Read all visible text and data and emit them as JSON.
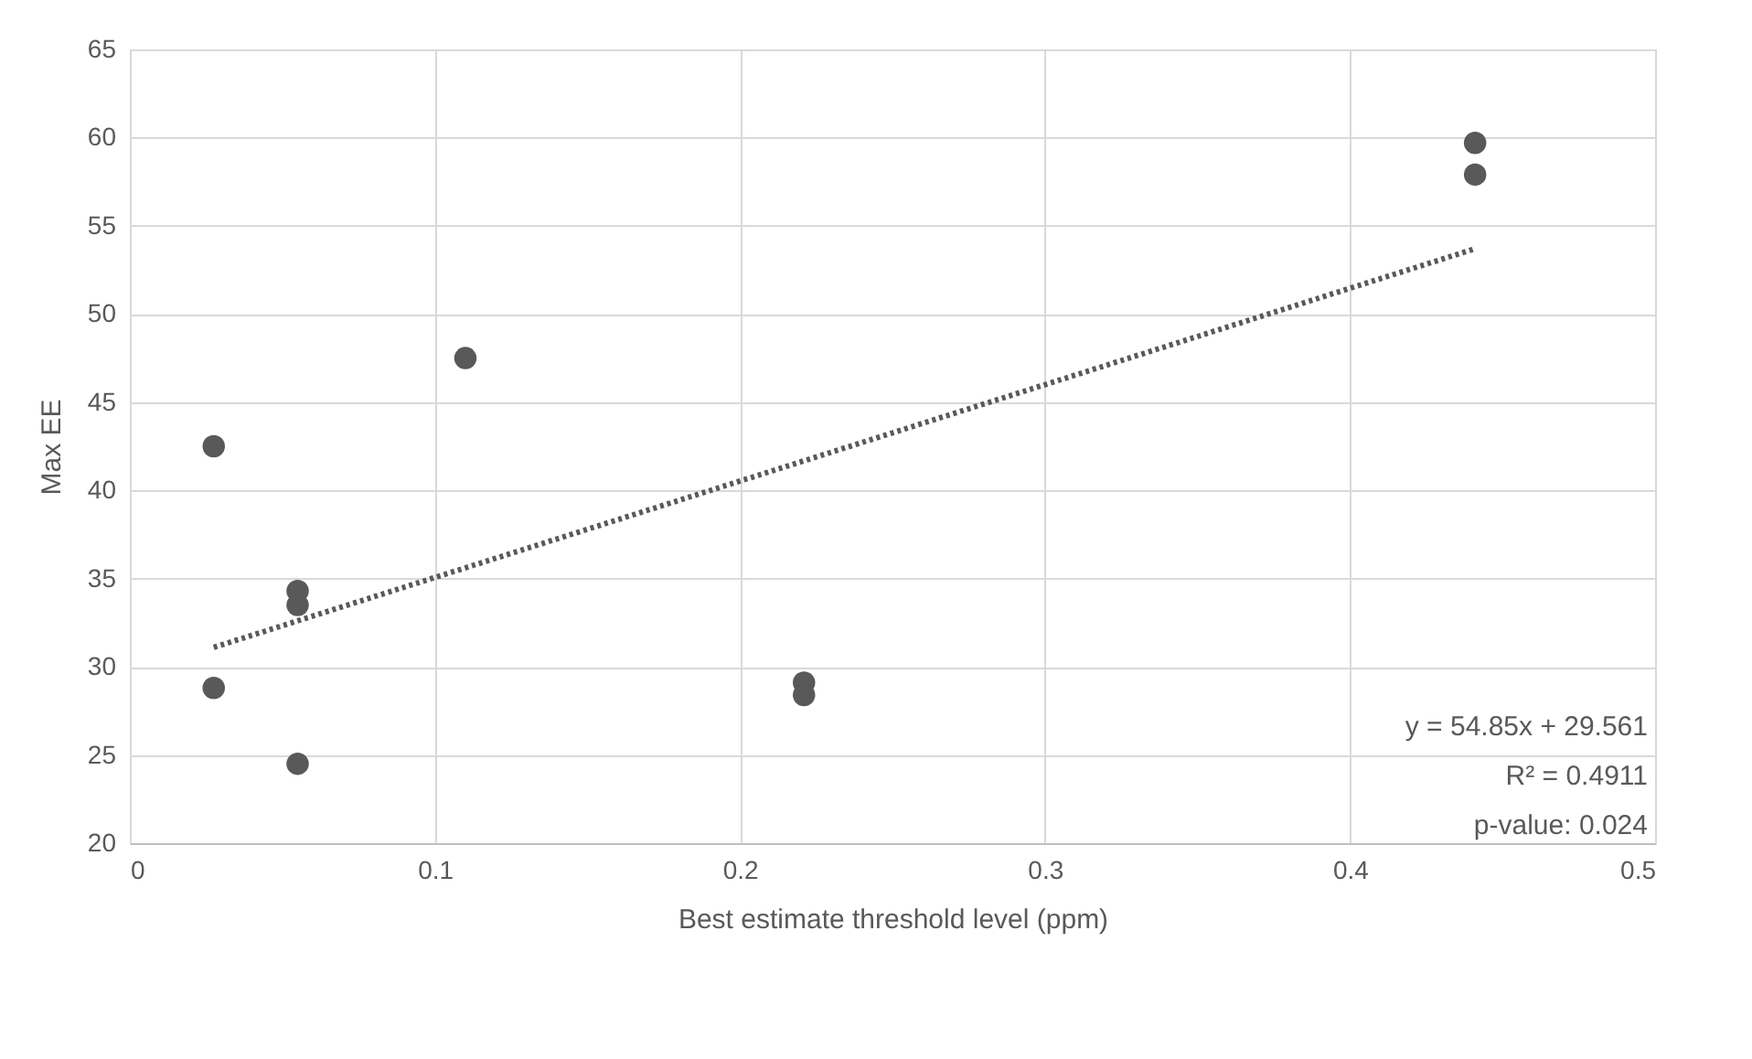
{
  "chart_data": {
    "type": "scatter",
    "xlabel": "Best estimate threshold level (ppm)",
    "ylabel": "Max EE",
    "xlim": [
      0,
      0.5
    ],
    "xticks": [
      0,
      0.1,
      0.2,
      0.3,
      0.4,
      0.5
    ],
    "ylim": [
      20,
      65
    ],
    "yticks": [
      20,
      25,
      30,
      35,
      40,
      45,
      50,
      55,
      60,
      65
    ],
    "grid": true,
    "series": [
      {
        "color": "#595959",
        "marker": "circle",
        "x": [
          0.0275,
          0.0275,
          0.055,
          0.055,
          0.055,
          0.11,
          0.221,
          0.221,
          0.441,
          0.441
        ],
        "values": [
          42.5,
          28.8,
          34.3,
          33.5,
          24.5,
          47.5,
          29.1,
          28.4,
          59.7,
          57.9
        ]
      },
      {
        "type": "line",
        "color": "#595959",
        "line_style": "dotted",
        "x": [
          0.0275,
          0.441
        ],
        "values": [
          31.1,
          53.7
        ]
      }
    ],
    "annotations": [
      "y = 54.85x + 29.561",
      "R² = 0.4911",
      "p-value: 0.024"
    ]
  }
}
